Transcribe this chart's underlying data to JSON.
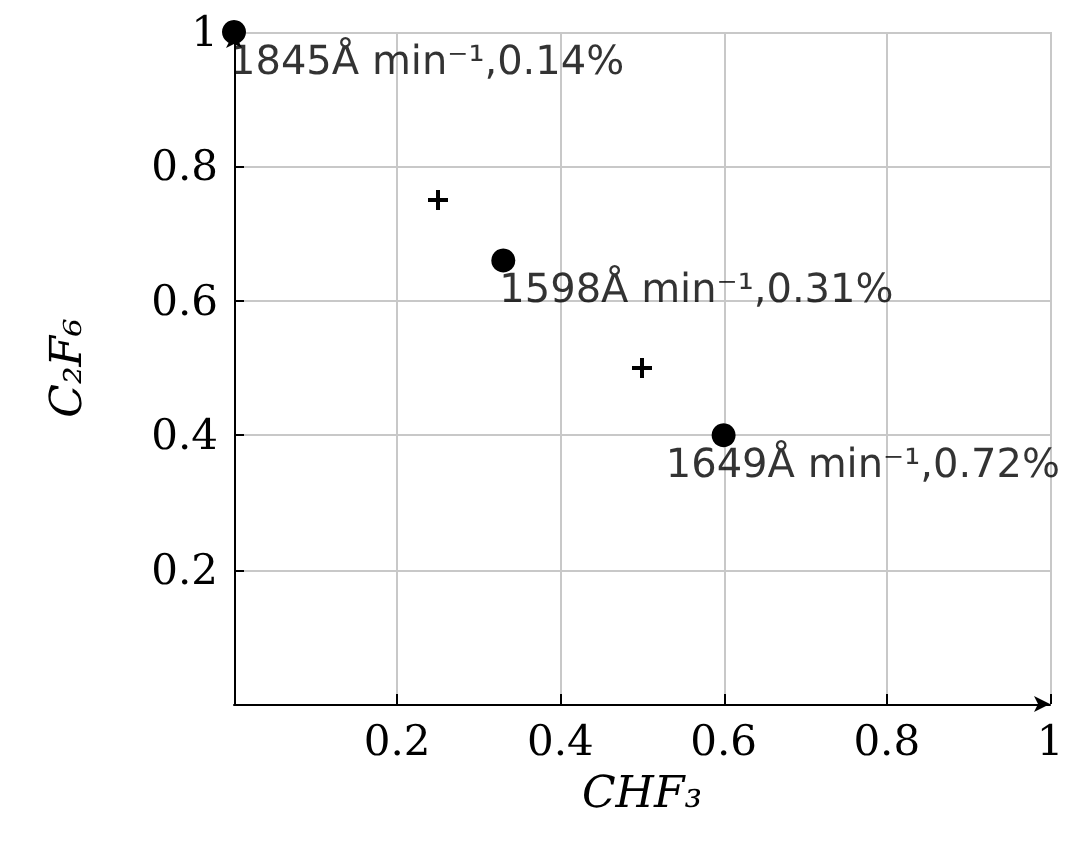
{
  "chart_data": {
    "type": "scatter",
    "xlabel": "CHF₃",
    "ylabel": "C₂F₆",
    "xlim": [
      0,
      1
    ],
    "ylim": [
      0,
      1
    ],
    "xticks": [
      0.2,
      0.4,
      0.6,
      0.8,
      1
    ],
    "yticks": [
      0.2,
      0.4,
      0.6,
      0.8,
      1
    ],
    "grid": true,
    "series": [
      {
        "x": [
          0,
          0.33,
          0.6
        ],
        "values": [
          1,
          0.66,
          0.4
        ],
        "color": "#000000",
        "marker": "circle"
      },
      {
        "x": [
          0.25,
          0.5
        ],
        "values": [
          0.75,
          0.5
        ],
        "color": "#000000",
        "marker": "cross"
      }
    ],
    "annotations": [
      {
        "text": "1845Å min⁻¹,0.14%",
        "x": 0,
        "y": 1
      },
      {
        "text": "1598Å min⁻¹,0.31%",
        "x": 0.33,
        "y": 0.66
      },
      {
        "text": "1649Å min⁻¹,0.72%",
        "x": 0.6,
        "y": 0.4
      }
    ]
  }
}
